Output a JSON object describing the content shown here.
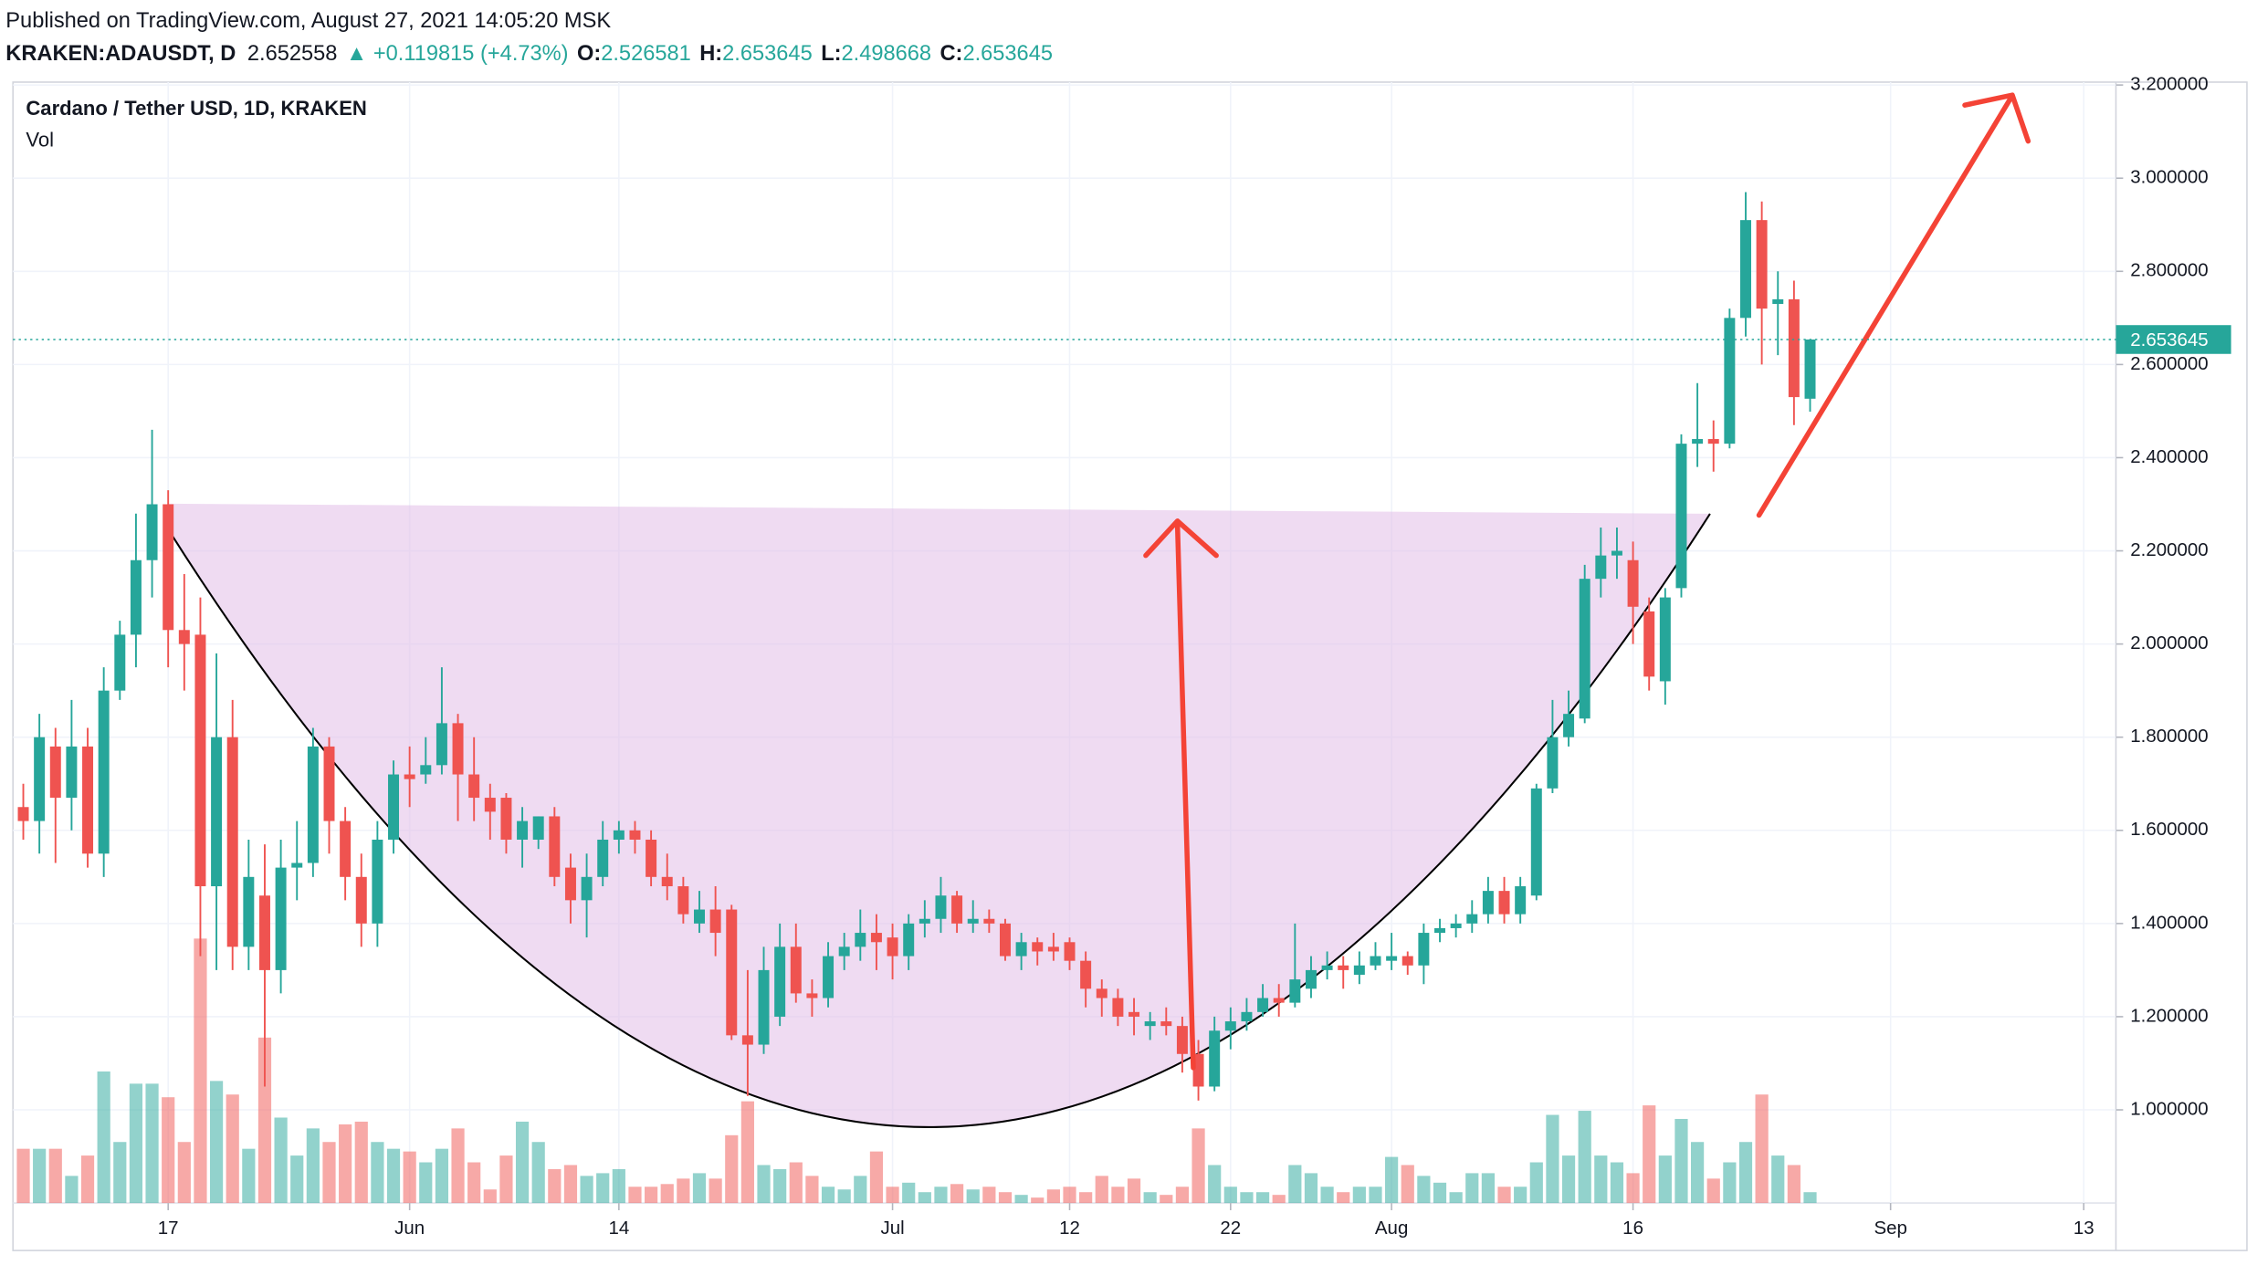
{
  "header": {
    "published": "Published on TradingView.com, August 27, 2021 14:05:20 MSK",
    "symbol": "KRAKEN:ADAUSDT, D",
    "price": "2.652558",
    "change": "▲ +0.119815 (+4.73%)",
    "ohlc": [
      {
        "label": "O:",
        "value": "2.526581"
      },
      {
        "label": "H:",
        "value": "2.653645"
      },
      {
        "label": "L:",
        "value": "2.498668"
      },
      {
        "label": "C:",
        "value": "2.653645"
      }
    ]
  },
  "chart_data": {
    "type": "candlestick",
    "legend": {
      "title": "Cardano / Tether USD, 1D, KRAKEN",
      "volume": "Vol"
    },
    "up_color": "#26a69a",
    "down_color": "#ef5350",
    "x": [
      "2021-05-08",
      "2021-05-09",
      "2021-05-10",
      "2021-05-11",
      "2021-05-12",
      "2021-05-13",
      "2021-05-14",
      "2021-05-15",
      "2021-05-16",
      "2021-05-17",
      "2021-05-18",
      "2021-05-19",
      "2021-05-20",
      "2021-05-21",
      "2021-05-22",
      "2021-05-23",
      "2021-05-24",
      "2021-05-25",
      "2021-05-26",
      "2021-05-27",
      "2021-05-28",
      "2021-05-29",
      "2021-05-30",
      "2021-05-31",
      "2021-06-01",
      "2021-06-02",
      "2021-06-03",
      "2021-06-04",
      "2021-06-05",
      "2021-06-06",
      "2021-06-07",
      "2021-06-08",
      "2021-06-09",
      "2021-06-10",
      "2021-06-11",
      "2021-06-12",
      "2021-06-13",
      "2021-06-14",
      "2021-06-15",
      "2021-06-16",
      "2021-06-17",
      "2021-06-18",
      "2021-06-19",
      "2021-06-20",
      "2021-06-21",
      "2021-06-22",
      "2021-06-23",
      "2021-06-24",
      "2021-06-25",
      "2021-06-26",
      "2021-06-27",
      "2021-06-28",
      "2021-06-29",
      "2021-06-30",
      "2021-07-01",
      "2021-07-02",
      "2021-07-03",
      "2021-07-04",
      "2021-07-05",
      "2021-07-06",
      "2021-07-07",
      "2021-07-08",
      "2021-07-09",
      "2021-07-10",
      "2021-07-11",
      "2021-07-12",
      "2021-07-13",
      "2021-07-14",
      "2021-07-15",
      "2021-07-16",
      "2021-07-17",
      "2021-07-18",
      "2021-07-19",
      "2021-07-20",
      "2021-07-21",
      "2021-07-22",
      "2021-07-23",
      "2021-07-24",
      "2021-07-25",
      "2021-07-26",
      "2021-07-27",
      "2021-07-28",
      "2021-07-29",
      "2021-07-30",
      "2021-07-31",
      "2021-08-01",
      "2021-08-02",
      "2021-08-03",
      "2021-08-04",
      "2021-08-05",
      "2021-08-06",
      "2021-08-07",
      "2021-08-08",
      "2021-08-09",
      "2021-08-10",
      "2021-08-11",
      "2021-08-12",
      "2021-08-13",
      "2021-08-14",
      "2021-08-15",
      "2021-08-16",
      "2021-08-17",
      "2021-08-18",
      "2021-08-19",
      "2021-08-20",
      "2021-08-21",
      "2021-08-22",
      "2021-08-23",
      "2021-08-24",
      "2021-08-25",
      "2021-08-26",
      "2021-08-27"
    ],
    "open": [
      1.65,
      1.62,
      1.78,
      1.67,
      1.78,
      1.55,
      1.9,
      2.02,
      2.18,
      2.3,
      2.03,
      2.02,
      1.48,
      1.8,
      1.35,
      1.46,
      1.3,
      1.52,
      1.53,
      1.78,
      1.62,
      1.5,
      1.4,
      1.58,
      1.72,
      1.72,
      1.74,
      1.83,
      1.72,
      1.67,
      1.67,
      1.58,
      1.58,
      1.63,
      1.52,
      1.45,
      1.5,
      1.58,
      1.6,
      1.58,
      1.5,
      1.48,
      1.4,
      1.43,
      1.43,
      1.16,
      1.14,
      1.2,
      1.35,
      1.25,
      1.24,
      1.33,
      1.35,
      1.38,
      1.37,
      1.33,
      1.4,
      1.41,
      1.46,
      1.4,
      1.41,
      1.4,
      1.33,
      1.36,
      1.35,
      1.36,
      1.32,
      1.26,
      1.24,
      1.21,
      1.18,
      1.19,
      1.18,
      1.12,
      1.05,
      1.17,
      1.19,
      1.21,
      1.24,
      1.23,
      1.26,
      1.3,
      1.31,
      1.29,
      1.31,
      1.32,
      1.33,
      1.31,
      1.38,
      1.39,
      1.4,
      1.42,
      1.47,
      1.42,
      1.46,
      1.69,
      1.8,
      1.84,
      2.14,
      2.19,
      2.18,
      2.07,
      1.92,
      2.12,
      2.43,
      2.44,
      2.43,
      2.7,
      2.91,
      2.73,
      2.74,
      2.526581
    ],
    "high": [
      1.7,
      1.85,
      1.82,
      1.88,
      1.82,
      1.95,
      2.05,
      2.28,
      2.46,
      2.33,
      2.15,
      2.1,
      1.98,
      1.88,
      1.58,
      1.57,
      1.58,
      1.62,
      1.82,
      1.8,
      1.65,
      1.55,
      1.62,
      1.75,
      1.78,
      1.8,
      1.95,
      1.85,
      1.8,
      1.7,
      1.68,
      1.65,
      1.63,
      1.65,
      1.55,
      1.55,
      1.62,
      1.62,
      1.62,
      1.6,
      1.55,
      1.5,
      1.47,
      1.48,
      1.44,
      1.3,
      1.35,
      1.4,
      1.4,
      1.28,
      1.36,
      1.38,
      1.43,
      1.42,
      1.4,
      1.42,
      1.45,
      1.5,
      1.47,
      1.45,
      1.43,
      1.41,
      1.38,
      1.37,
      1.38,
      1.37,
      1.34,
      1.28,
      1.26,
      1.24,
      1.21,
      1.22,
      1.2,
      1.15,
      1.2,
      1.22,
      1.24,
      1.27,
      1.27,
      1.4,
      1.33,
      1.34,
      1.33,
      1.34,
      1.36,
      1.38,
      1.34,
      1.4,
      1.41,
      1.42,
      1.45,
      1.5,
      1.5,
      1.5,
      1.7,
      1.88,
      1.9,
      2.17,
      2.25,
      2.25,
      2.22,
      2.1,
      2.12,
      2.45,
      2.56,
      2.48,
      2.72,
      2.97,
      2.95,
      2.8,
      2.78,
      2.653645
    ],
    "low": [
      1.58,
      1.55,
      1.53,
      1.6,
      1.52,
      1.5,
      1.88,
      1.95,
      2.1,
      1.95,
      1.9,
      1.33,
      1.3,
      1.3,
      1.3,
      1.05,
      1.25,
      1.45,
      1.5,
      1.55,
      1.45,
      1.35,
      1.35,
      1.55,
      1.65,
      1.7,
      1.72,
      1.62,
      1.62,
      1.58,
      1.55,
      1.52,
      1.56,
      1.48,
      1.4,
      1.37,
      1.48,
      1.55,
      1.55,
      1.48,
      1.45,
      1.4,
      1.38,
      1.33,
      1.15,
      1.03,
      1.12,
      1.18,
      1.23,
      1.2,
      1.22,
      1.3,
      1.32,
      1.3,
      1.28,
      1.3,
      1.37,
      1.38,
      1.38,
      1.38,
      1.38,
      1.32,
      1.3,
      1.31,
      1.32,
      1.3,
      1.22,
      1.2,
      1.18,
      1.16,
      1.15,
      1.16,
      1.08,
      1.02,
      1.04,
      1.13,
      1.17,
      1.2,
      1.2,
      1.22,
      1.24,
      1.28,
      1.26,
      1.27,
      1.3,
      1.3,
      1.29,
      1.27,
      1.36,
      1.37,
      1.38,
      1.4,
      1.4,
      1.4,
      1.45,
      1.68,
      1.78,
      1.83,
      2.1,
      2.14,
      2.0,
      1.9,
      1.87,
      2.1,
      2.38,
      2.37,
      2.42,
      2.66,
      2.6,
      2.62,
      2.47,
      2.498668
    ],
    "close": [
      1.62,
      1.8,
      1.67,
      1.78,
      1.55,
      1.9,
      2.02,
      2.18,
      2.3,
      2.03,
      2.0,
      1.48,
      1.8,
      1.35,
      1.5,
      1.3,
      1.52,
      1.53,
      1.78,
      1.62,
      1.5,
      1.4,
      1.58,
      1.72,
      1.71,
      1.74,
      1.83,
      1.72,
      1.67,
      1.64,
      1.58,
      1.62,
      1.63,
      1.5,
      1.45,
      1.5,
      1.58,
      1.6,
      1.58,
      1.5,
      1.48,
      1.42,
      1.43,
      1.38,
      1.16,
      1.14,
      1.3,
      1.35,
      1.25,
      1.24,
      1.33,
      1.35,
      1.38,
      1.36,
      1.33,
      1.4,
      1.41,
      1.46,
      1.4,
      1.41,
      1.4,
      1.33,
      1.36,
      1.34,
      1.34,
      1.32,
      1.26,
      1.24,
      1.2,
      1.2,
      1.19,
      1.18,
      1.12,
      1.05,
      1.17,
      1.19,
      1.21,
      1.24,
      1.23,
      1.28,
      1.3,
      1.31,
      1.3,
      1.31,
      1.33,
      1.33,
      1.31,
      1.38,
      1.39,
      1.4,
      1.42,
      1.47,
      1.42,
      1.48,
      1.69,
      1.8,
      1.85,
      2.14,
      2.19,
      2.2,
      2.08,
      1.93,
      2.1,
      2.43,
      2.44,
      2.43,
      2.7,
      2.91,
      2.72,
      2.74,
      2.53,
      2.653645
    ],
    "volume": [
      40,
      40,
      40,
      20,
      35,
      97,
      45,
      88,
      88,
      78,
      45,
      195,
      90,
      80,
      40,
      122,
      63,
      35,
      55,
      45,
      58,
      60,
      45,
      40,
      38,
      30,
      40,
      55,
      30,
      10,
      35,
      60,
      45,
      25,
      28,
      20,
      22,
      25,
      12,
      12,
      14,
      18,
      22,
      18,
      50,
      75,
      28,
      25,
      30,
      20,
      12,
      10,
      20,
      38,
      12,
      15,
      8,
      12,
      14,
      10,
      12,
      8,
      6,
      4,
      10,
      12,
      8,
      20,
      12,
      18,
      8,
      6,
      12,
      55,
      28,
      12,
      8,
      8,
      6,
      28,
      22,
      12,
      8,
      12,
      12,
      34,
      28,
      20,
      15,
      8,
      22,
      22,
      12,
      12,
      30,
      65,
      35,
      68,
      35,
      30,
      22,
      72,
      35,
      62,
      45,
      18,
      30,
      45,
      80,
      35,
      28,
      8
    ],
    "volume_ylim": [
      0,
      400
    ],
    "xlim": [
      "2021-05-07",
      "2021-09-15"
    ],
    "xticks": [
      {
        "value": "2021-05-17",
        "label": "17"
      },
      {
        "value": "2021-06-01",
        "label": "Jun"
      },
      {
        "value": "2021-06-14",
        "label": "14"
      },
      {
        "value": "2021-07-01",
        "label": "Jul"
      },
      {
        "value": "2021-07-12",
        "label": "12"
      },
      {
        "value": "2021-07-22",
        "label": "22"
      },
      {
        "value": "2021-08-01",
        "label": "Aug"
      },
      {
        "value": "2021-08-16",
        "label": "16"
      },
      {
        "value": "2021-09-01",
        "label": "Sep"
      },
      {
        "value": "2021-09-13",
        "label": "13"
      }
    ],
    "ylim": [
      0.8,
      3.2
    ],
    "yticks": [
      {
        "value": 1.0,
        "label": "1.000000"
      },
      {
        "value": 1.2,
        "label": "1.200000"
      },
      {
        "value": 1.4,
        "label": "1.400000"
      },
      {
        "value": 1.6,
        "label": "1.600000"
      },
      {
        "value": 1.8,
        "label": "1.800000"
      },
      {
        "value": 2.0,
        "label": "2.000000"
      },
      {
        "value": 2.2,
        "label": "2.200000"
      },
      {
        "value": 2.4,
        "label": "2.400000"
      },
      {
        "value": 2.6,
        "label": "2.600000"
      },
      {
        "value": 2.8,
        "label": "2.800000"
      },
      {
        "value": 3.0,
        "label": "3.000000"
      },
      {
        "value": 3.2,
        "label": "3.200000"
      }
    ],
    "grid": true
  }
}
